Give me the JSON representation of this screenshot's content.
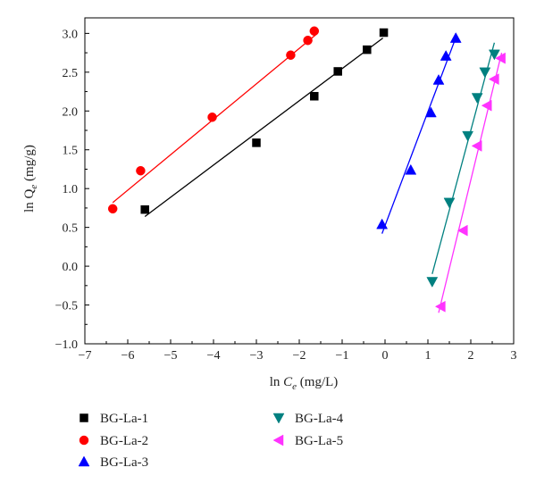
{
  "chart_data": {
    "type": "scatter",
    "xlabel": {
      "prefix": "ln ",
      "main": "C",
      "sub": "e",
      "suffix": " (mg/L)"
    },
    "ylabel": {
      "prefix": "ln ",
      "main": "Q",
      "sub": "e",
      "suffix": " (mg/g)"
    },
    "xlim": [
      -7,
      3
    ],
    "ylim": [
      -1.0,
      3.2
    ],
    "xticks": [
      -7,
      -6,
      -5,
      -4,
      -3,
      -2,
      -1,
      0,
      1,
      2,
      3
    ],
    "yticks": [
      -1.0,
      -0.5,
      0.0,
      0.5,
      1.0,
      1.5,
      2.0,
      2.5,
      3.0
    ],
    "grid": false,
    "legend_position": "bottom",
    "series": [
      {
        "name": "BG-La-1",
        "marker": "square",
        "color": "#000000",
        "x": [
          -5.6,
          -3.0,
          -1.65,
          -1.1,
          -0.42,
          -0.03
        ],
        "y": [
          0.73,
          1.59,
          2.19,
          2.51,
          2.79,
          3.01
        ],
        "fit": {
          "x": [
            -5.6,
            -0.05
          ],
          "y": [
            0.64,
            2.94
          ]
        }
      },
      {
        "name": "BG-La-2",
        "marker": "circle",
        "color": "#ff0000",
        "x": [
          -6.35,
          -5.7,
          -4.03,
          -2.2,
          -1.8,
          -1.65
        ],
        "y": [
          0.74,
          1.23,
          1.92,
          2.72,
          2.91,
          3.03
        ],
        "fit": {
          "x": [
            -6.35,
            -1.62
          ],
          "y": [
            0.82,
            2.98
          ]
        }
      },
      {
        "name": "BG-La-3",
        "marker": "triangle-up",
        "color": "#0000ff",
        "x": [
          -0.07,
          0.6,
          1.07,
          1.25,
          1.42,
          1.65
        ],
        "y": [
          0.54,
          1.24,
          1.98,
          2.4,
          2.71,
          2.94
        ],
        "fit": {
          "x": [
            -0.07,
            1.62
          ],
          "y": [
            0.42,
            2.9
          ]
        }
      },
      {
        "name": "BG-La-4",
        "marker": "triangle-down",
        "color": "#008080",
        "x": [
          1.1,
          1.5,
          1.93,
          2.15,
          2.33,
          2.55
        ],
        "y": [
          -0.2,
          0.82,
          1.68,
          2.17,
          2.5,
          2.73
        ],
        "fit": {
          "x": [
            1.1,
            2.55
          ],
          "y": [
            -0.1,
            2.88
          ]
        }
      },
      {
        "name": "BG-La-5",
        "marker": "triangle-left",
        "color": "#ff33ff",
        "x": [
          1.3,
          1.82,
          2.15,
          2.38,
          2.55,
          2.7
        ],
        "y": [
          -0.52,
          0.46,
          1.55,
          2.07,
          2.41,
          2.68
        ],
        "fit": {
          "x": [
            1.25,
            2.72
          ],
          "y": [
            -0.6,
            2.75
          ]
        }
      }
    ]
  }
}
